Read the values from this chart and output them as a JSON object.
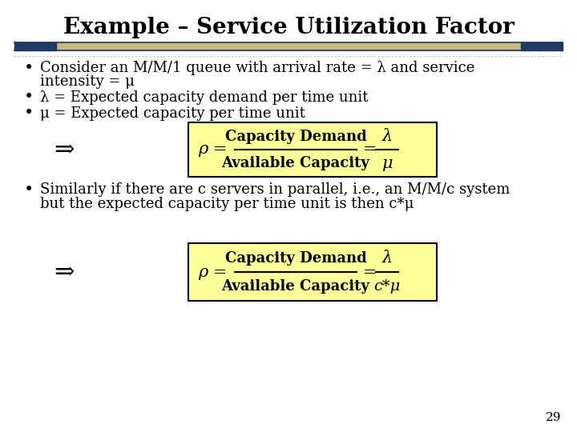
{
  "title": "Example – Service Utilization Factor",
  "title_fontsize": 20,
  "title_fontweight": "bold",
  "title_color": "#000000",
  "background_color": "#ffffff",
  "separator_color1": "#1f3864",
  "separator_color2": "#c9b97a",
  "bullet1_line1": "Consider an M/M/1 queue with arrival rate = λ and service",
  "bullet1_line2": "intensity = μ",
  "bullet2": "λ = Expected capacity demand per time unit",
  "bullet3": "μ = Expected capacity per time unit",
  "formula1_top": "Capacity Demand",
  "formula1_bottom": "Available Capacity",
  "formula1_rhs_top": "λ",
  "formula1_rhs_bottom": "μ",
  "formula2_top": "Capacity Demand",
  "formula2_bottom": "Available Capacity",
  "formula2_rhs_top": "λ",
  "formula2_rhs_bottom": "c*μ",
  "bullet4_line1": "Similarly if there are c servers in parallel, i.e., an M/M/c system",
  "bullet4_line2": "but the expected capacity per time unit is then c*μ",
  "arrow_symbol": "⇒",
  "box_color": "#ffff99",
  "box_edge_color": "#000000",
  "rho_symbol": "ρ",
  "text_fontsize": 13,
  "formula_fontsize": 13,
  "page_number": "29",
  "bullet_color": "#000000",
  "text_color": "#000000",
  "dot_line_color": "#888888"
}
